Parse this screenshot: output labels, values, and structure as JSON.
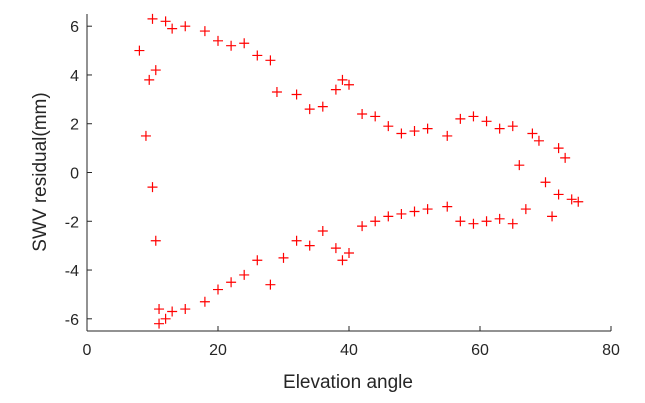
{
  "chart_data": {
    "type": "scatter",
    "xlabel": "Elevation angle",
    "ylabel": "SWV residual(mm)",
    "xlim": [
      0,
      80
    ],
    "ylim": [
      -6.5,
      6.5
    ],
    "xticks": [
      0,
      20,
      40,
      60,
      80
    ],
    "yticks": [
      -6,
      -4,
      -2,
      0,
      2,
      4,
      6
    ],
    "grid": false,
    "marker": "+",
    "series_color": "#ff0000",
    "series": [
      {
        "points": [
          [
            8,
            5.0
          ],
          [
            9,
            1.5
          ],
          [
            9.5,
            3.8
          ],
          [
            10,
            6.3
          ],
          [
            10,
            -0.6
          ],
          [
            10.5,
            -2.8
          ],
          [
            10.5,
            4.2
          ],
          [
            11,
            -5.6
          ],
          [
            11,
            -6.2
          ],
          [
            12,
            6.2
          ],
          [
            12,
            -6.0
          ],
          [
            13,
            5.9
          ],
          [
            13,
            -5.7
          ],
          [
            15,
            6.0
          ],
          [
            15,
            -5.6
          ],
          [
            18,
            5.8
          ],
          [
            18,
            -5.3
          ],
          [
            20,
            5.4
          ],
          [
            20,
            -4.8
          ],
          [
            22,
            5.2
          ],
          [
            22,
            -4.5
          ],
          [
            24,
            5.3
          ],
          [
            24,
            -4.2
          ],
          [
            26,
            4.8
          ],
          [
            26,
            -3.6
          ],
          [
            28,
            4.6
          ],
          [
            28,
            -4.6
          ],
          [
            29,
            3.3
          ],
          [
            30,
            -3.5
          ],
          [
            32,
            3.2
          ],
          [
            32,
            -2.8
          ],
          [
            34,
            2.6
          ],
          [
            34,
            -3.0
          ],
          [
            36,
            2.7
          ],
          [
            36,
            -2.4
          ],
          [
            38,
            3.4
          ],
          [
            38,
            -3.1
          ],
          [
            39,
            3.8
          ],
          [
            39,
            -3.6
          ],
          [
            40,
            3.6
          ],
          [
            40,
            -3.3
          ],
          [
            42,
            2.4
          ],
          [
            42,
            -2.2
          ],
          [
            44,
            2.3
          ],
          [
            44,
            -2.0
          ],
          [
            46,
            1.9
          ],
          [
            46,
            -1.8
          ],
          [
            48,
            1.6
          ],
          [
            48,
            -1.7
          ],
          [
            50,
            1.7
          ],
          [
            50,
            -1.6
          ],
          [
            52,
            1.8
          ],
          [
            52,
            -1.5
          ],
          [
            55,
            1.5
          ],
          [
            55,
            -1.4
          ],
          [
            57,
            2.2
          ],
          [
            57,
            -2.0
          ],
          [
            59,
            2.3
          ],
          [
            59,
            -2.1
          ],
          [
            61,
            2.1
          ],
          [
            61,
            -2.0
          ],
          [
            63,
            1.8
          ],
          [
            63,
            -1.9
          ],
          [
            65,
            1.9
          ],
          [
            65,
            -2.1
          ],
          [
            66,
            0.3
          ],
          [
            67,
            -1.5
          ],
          [
            68,
            1.6
          ],
          [
            69,
            1.3
          ],
          [
            70,
            -0.4
          ],
          [
            71,
            -1.8
          ],
          [
            72,
            1.0
          ],
          [
            72,
            -0.9
          ],
          [
            73,
            0.6
          ],
          [
            74,
            -1.1
          ],
          [
            75,
            -1.2
          ]
        ]
      }
    ]
  }
}
